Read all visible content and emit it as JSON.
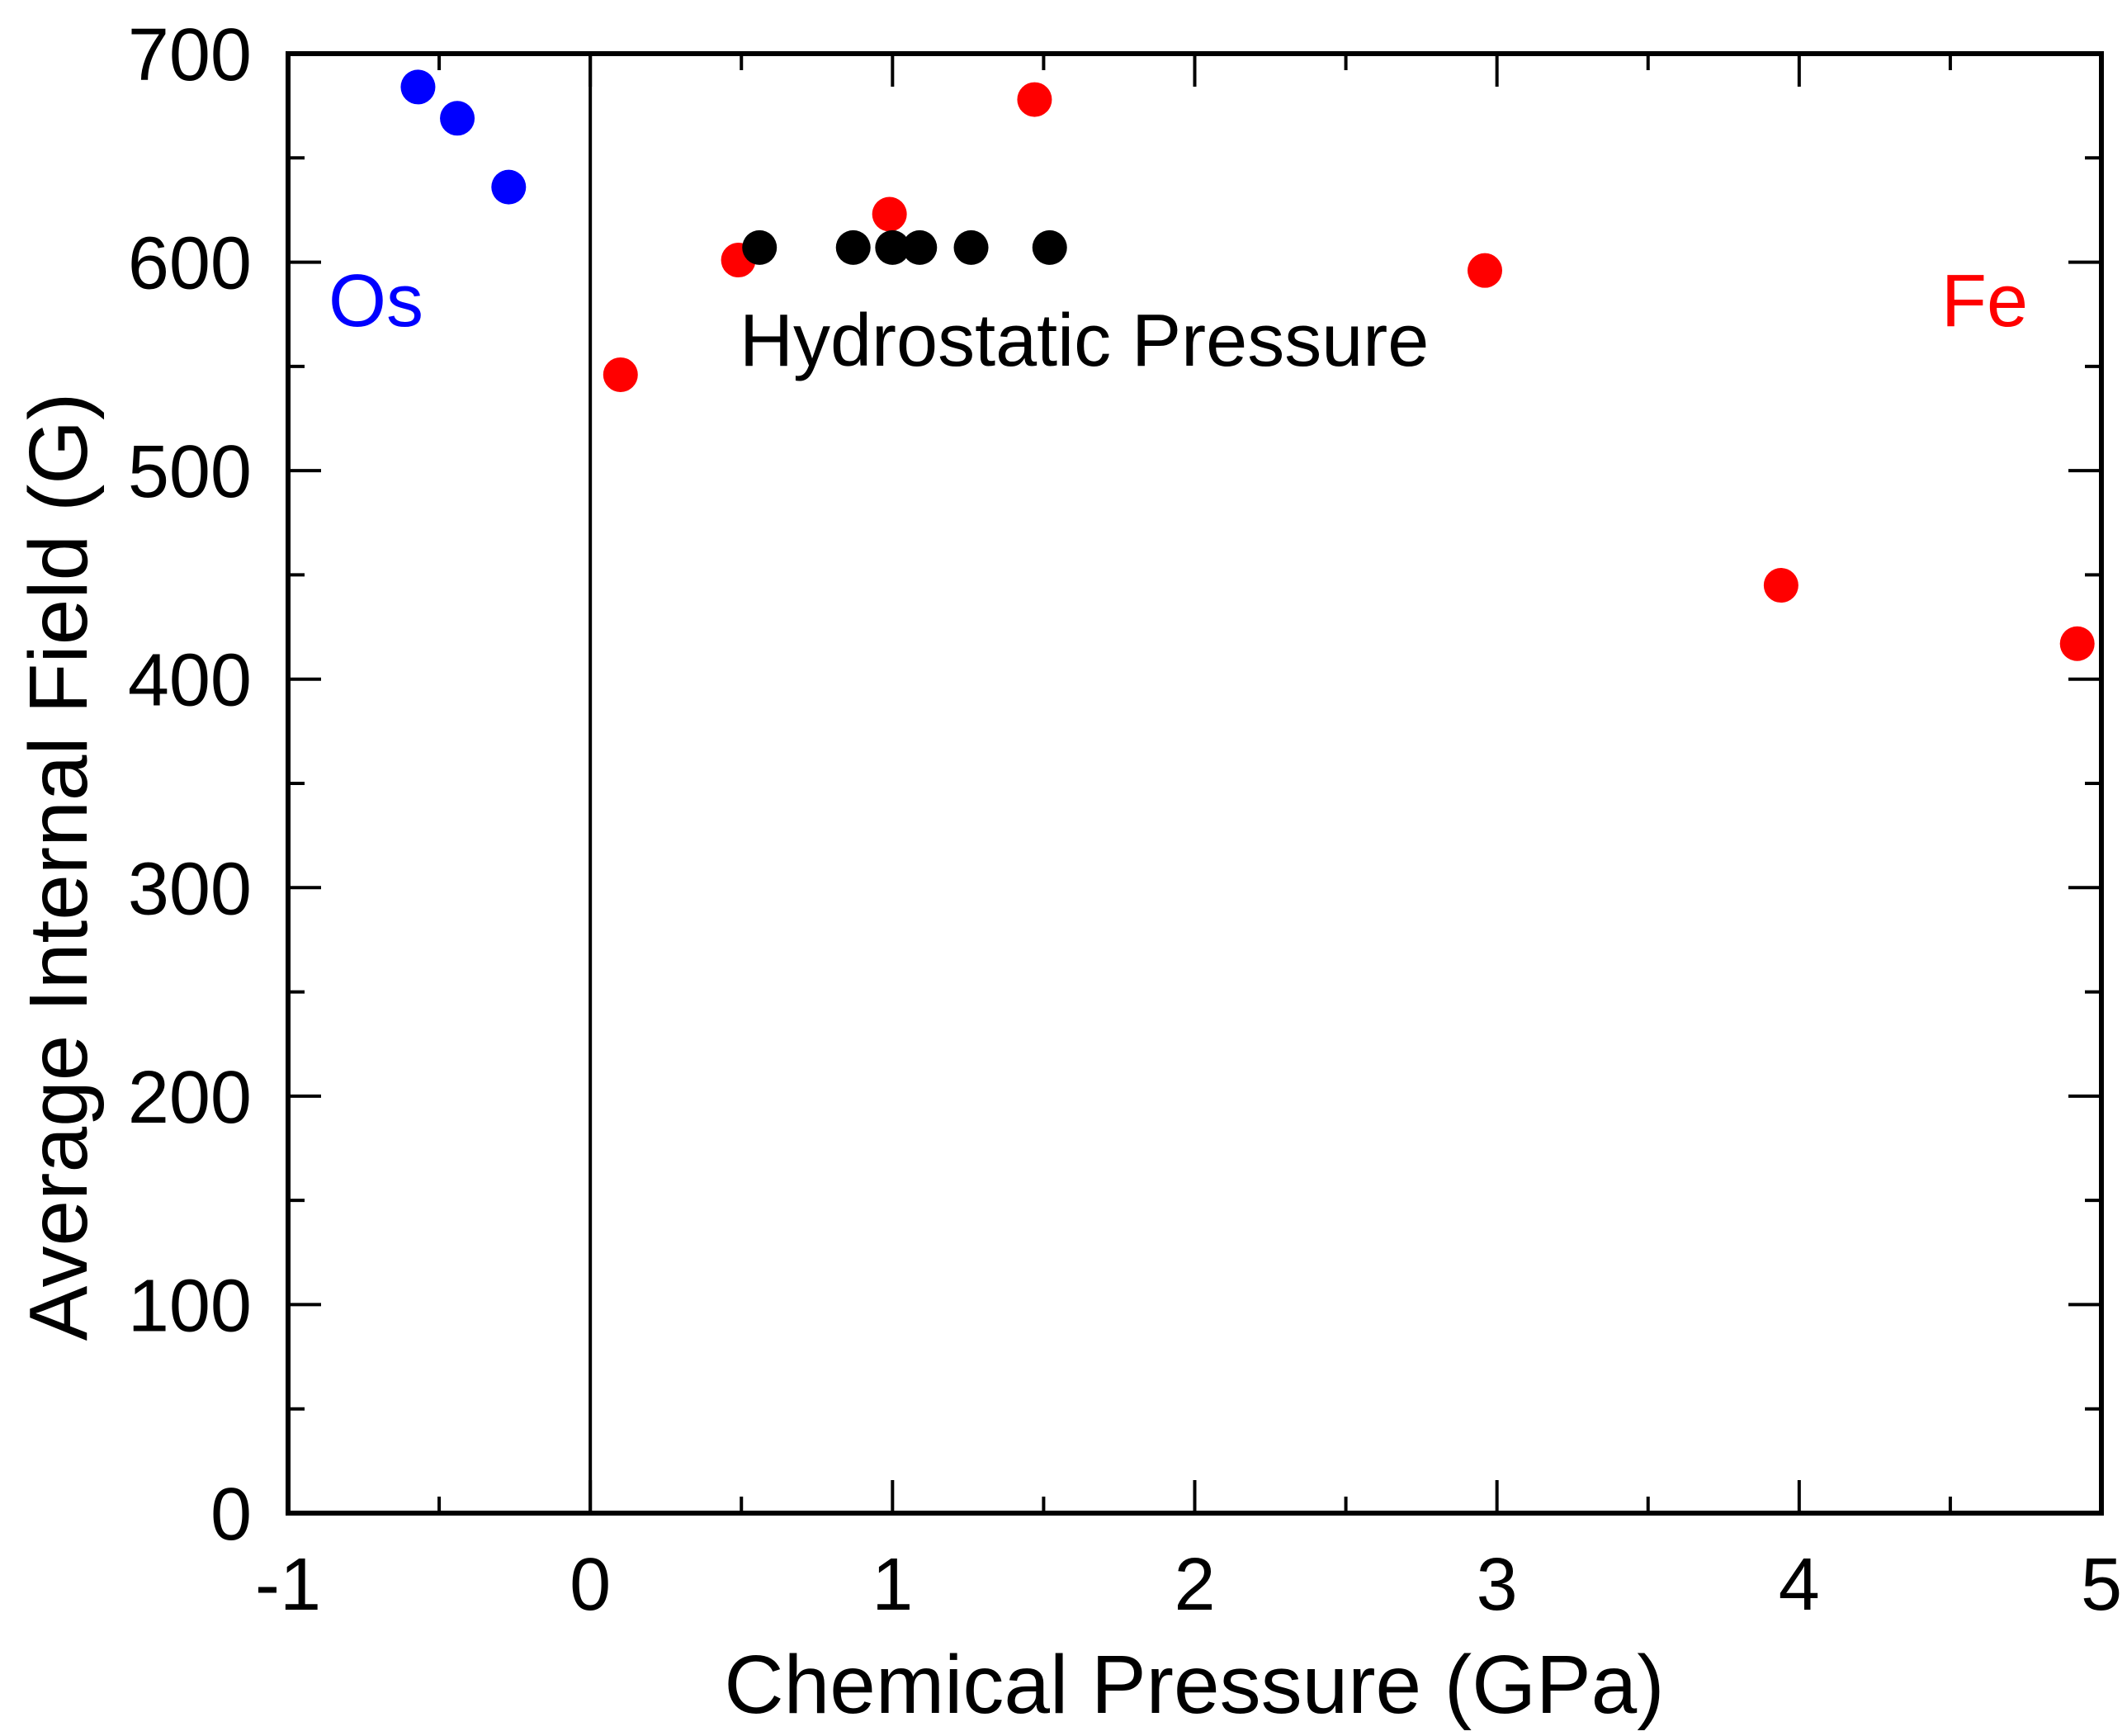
{
  "chart_data": {
    "type": "scatter",
    "xlabel": "Chemical Pressure (GPa)",
    "ylabel": "Average Internal Field (G)",
    "xlim": [
      -1,
      5
    ],
    "ylim": [
      0,
      700
    ],
    "xticks": [
      "-1",
      "0",
      "1",
      "2",
      "3",
      "4",
      "5"
    ],
    "yticks": [
      "0",
      "100",
      "200",
      "300",
      "400",
      "500",
      "600",
      "700"
    ],
    "grid": false,
    "series": [
      {
        "color": "#0000ff",
        "points": [
          [
            -0.57,
            684
          ],
          [
            -0.44,
            669
          ],
          [
            -0.27,
            636
          ]
        ]
      },
      {
        "color": "#ff0000",
        "points": [
          [
            0.1,
            546
          ],
          [
            0.49,
            601
          ],
          [
            0.99,
            623
          ],
          [
            1.47,
            678
          ],
          [
            2.96,
            596
          ],
          [
            3.94,
            445
          ],
          [
            4.92,
            417
          ]
        ]
      },
      {
        "color": "#000000",
        "points": [
          [
            0.56,
            607
          ],
          [
            0.87,
            607
          ],
          [
            1.0,
            607
          ],
          [
            1.09,
            607
          ],
          [
            1.26,
            607
          ],
          [
            1.52,
            607
          ]
        ]
      }
    ],
    "annotations": [
      {
        "text": "Os",
        "color": "#0000ff"
      },
      {
        "text": "Hydrostatic Pressure",
        "color": "#000000"
      },
      {
        "text": "Fe",
        "color": "#ff0000"
      }
    ]
  }
}
